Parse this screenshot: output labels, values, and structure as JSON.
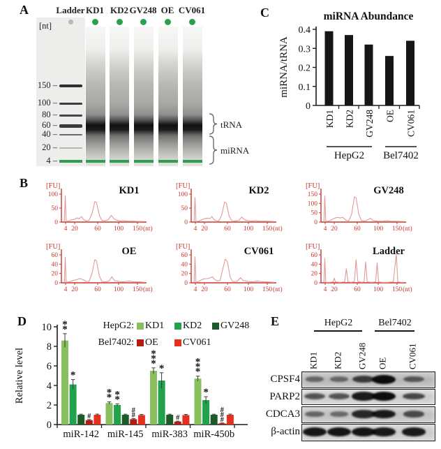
{
  "colors": {
    "trace": "#e29a98",
    "axis_red": "#c5372f",
    "bar_black": "#161616",
    "dot_green": "#2aa24d",
    "dot_gray": "#b8b8b6",
    "gel_green_band": "#2f9e4e",
    "kd1_green": "#8abf60",
    "kd2_green": "#23a24d",
    "gv248_green": "#1c5b28",
    "oe_red": "#b21c12",
    "cv061_red": "#e6301f"
  },
  "panel_a": {
    "label": "A",
    "nt_unit": "[nt]",
    "lane_labels": [
      "Ladder",
      "KD1",
      "KD2",
      "GV248",
      "OE",
      "CV061"
    ],
    "markers": [
      "150",
      "100",
      "80",
      "60",
      "40",
      "20",
      "4"
    ],
    "annotations": {
      "trna": "tRNA",
      "mirna": "miRNA"
    }
  },
  "panel_b": {
    "label": "B",
    "subplot_indices": [
      0,
      1,
      2,
      3,
      4,
      5
    ]
  },
  "panel_c": {
    "label": "C",
    "chart_index": 6
  },
  "panel_d": {
    "label": "D",
    "chart_index": 7
  },
  "panel_e": {
    "label": "E",
    "groups": [
      {
        "name": "HepG2",
        "lanes": [
          "KD1",
          "KD2",
          "GV248"
        ]
      },
      {
        "name": "Bel7402",
        "lanes": [
          "OE",
          "CV061"
        ]
      }
    ],
    "lanes": [
      "KD1",
      "KD2",
      "GV248",
      "OE",
      "CV061"
    ],
    "proteins": [
      "CPSF4",
      "PARP2",
      "CDCA3",
      "β-actin"
    ],
    "band_intensities": [
      [
        0.3,
        0.3,
        0.65,
        1.0,
        0.45
      ],
      [
        0.5,
        0.5,
        0.9,
        1.0,
        0.6
      ],
      [
        0.35,
        0.3,
        0.8,
        0.9,
        0.55
      ],
      [
        0.93,
        0.95,
        0.95,
        0.92,
        0.9
      ]
    ]
  },
  "chart_data": [
    {
      "type": "line",
      "title": "KD1",
      "ylabel": "[FU]",
      "xlabel": "(nt)",
      "y_ticks": [
        0,
        50,
        100
      ],
      "x_ticks": [
        4,
        20,
        60,
        100,
        150
      ],
      "points": [
        [
          2,
          1
        ],
        [
          3.5,
          95
        ],
        [
          5,
          2
        ],
        [
          10,
          4
        ],
        [
          15,
          8
        ],
        [
          20,
          10
        ],
        [
          24,
          15
        ],
        [
          28,
          12
        ],
        [
          32,
          20
        ],
        [
          35,
          10
        ],
        [
          40,
          4
        ],
        [
          45,
          6
        ],
        [
          50,
          30
        ],
        [
          55,
          73
        ],
        [
          58,
          70
        ],
        [
          63,
          25
        ],
        [
          68,
          6
        ],
        [
          73,
          4
        ],
        [
          80,
          8
        ],
        [
          86,
          24
        ],
        [
          92,
          10
        ],
        [
          98,
          6
        ],
        [
          105,
          4
        ],
        [
          115,
          5
        ],
        [
          125,
          3
        ],
        [
          140,
          3
        ],
        [
          155,
          2
        ],
        [
          168,
          2
        ]
      ]
    },
    {
      "type": "line",
      "title": "KD2",
      "ylabel": "[FU]",
      "xlabel": "(nt)",
      "y_ticks": [
        0,
        50,
        100
      ],
      "x_ticks": [
        4,
        20,
        60,
        100,
        150
      ],
      "points": [
        [
          2,
          1
        ],
        [
          3.5,
          88
        ],
        [
          5,
          2
        ],
        [
          10,
          3
        ],
        [
          15,
          8
        ],
        [
          20,
          12
        ],
        [
          25,
          14
        ],
        [
          30,
          13
        ],
        [
          33,
          20
        ],
        [
          36,
          10
        ],
        [
          40,
          5
        ],
        [
          45,
          4
        ],
        [
          50,
          25
        ],
        [
          55,
          72
        ],
        [
          58,
          68
        ],
        [
          63,
          22
        ],
        [
          68,
          5
        ],
        [
          75,
          4
        ],
        [
          82,
          6
        ],
        [
          87,
          18
        ],
        [
          93,
          8
        ],
        [
          100,
          5
        ],
        [
          110,
          4
        ],
        [
          120,
          5
        ],
        [
          135,
          3
        ],
        [
          150,
          3
        ],
        [
          168,
          2
        ]
      ]
    },
    {
      "type": "line",
      "title": "GV248",
      "ylabel": "[FU]",
      "xlabel": "(nt)",
      "y_ticks": [
        0,
        50,
        100,
        150
      ],
      "x_ticks": [
        4,
        20,
        60,
        100,
        150
      ],
      "points": [
        [
          2,
          1
        ],
        [
          3.5,
          140
        ],
        [
          5,
          3
        ],
        [
          10,
          5
        ],
        [
          15,
          12
        ],
        [
          20,
          20
        ],
        [
          25,
          25
        ],
        [
          30,
          22
        ],
        [
          35,
          25
        ],
        [
          40,
          10
        ],
        [
          45,
          6
        ],
        [
          50,
          40
        ],
        [
          55,
          135
        ],
        [
          58,
          130
        ],
        [
          63,
          40
        ],
        [
          68,
          8
        ],
        [
          75,
          5
        ],
        [
          85,
          20
        ],
        [
          90,
          8
        ],
        [
          100,
          5
        ],
        [
          110,
          4
        ],
        [
          125,
          8
        ],
        [
          130,
          5
        ],
        [
          145,
          4
        ],
        [
          168,
          3
        ]
      ]
    },
    {
      "type": "line",
      "title": "OE",
      "ylabel": "[FU]",
      "xlabel": "(nt)",
      "y_ticks": [
        0,
        20,
        40,
        60
      ],
      "x_ticks": [
        4,
        20,
        60,
        100,
        150
      ],
      "points": [
        [
          2,
          0.5
        ],
        [
          3.5,
          55
        ],
        [
          5,
          1
        ],
        [
          10,
          2
        ],
        [
          15,
          4
        ],
        [
          20,
          6
        ],
        [
          25,
          7
        ],
        [
          28,
          9
        ],
        [
          32,
          8
        ],
        [
          36,
          6
        ],
        [
          40,
          3
        ],
        [
          45,
          3
        ],
        [
          50,
          20
        ],
        [
          55,
          50
        ],
        [
          58,
          47
        ],
        [
          63,
          15
        ],
        [
          68,
          3
        ],
        [
          75,
          2
        ],
        [
          82,
          4
        ],
        [
          87,
          13
        ],
        [
          92,
          5
        ],
        [
          100,
          3
        ],
        [
          110,
          2
        ],
        [
          120,
          3
        ],
        [
          128,
          4
        ],
        [
          140,
          2
        ],
        [
          155,
          2
        ],
        [
          168,
          1
        ]
      ]
    },
    {
      "type": "line",
      "title": "CV061",
      "ylabel": "[FU]",
      "xlabel": "(nt)",
      "y_ticks": [
        0,
        20,
        40,
        60
      ],
      "x_ticks": [
        4,
        20,
        60,
        100,
        150
      ],
      "points": [
        [
          2,
          0.5
        ],
        [
          3.5,
          56
        ],
        [
          5,
          1
        ],
        [
          8,
          2
        ],
        [
          14,
          6
        ],
        [
          18,
          8
        ],
        [
          22,
          9
        ],
        [
          26,
          9
        ],
        [
          30,
          11
        ],
        [
          34,
          13
        ],
        [
          37,
          8
        ],
        [
          42,
          4
        ],
        [
          47,
          5
        ],
        [
          52,
          30
        ],
        [
          56,
          51
        ],
        [
          60,
          45
        ],
        [
          65,
          12
        ],
        [
          70,
          3
        ],
        [
          78,
          3
        ],
        [
          85,
          11
        ],
        [
          90,
          5
        ],
        [
          100,
          3
        ],
        [
          112,
          2
        ],
        [
          125,
          4
        ],
        [
          130,
          3
        ],
        [
          145,
          2
        ],
        [
          168,
          1
        ]
      ]
    },
    {
      "type": "line",
      "title": "Ladder",
      "ylabel": "[FU]",
      "xlabel": "(nt)",
      "y_ticks": [
        0,
        20,
        40,
        60
      ],
      "x_ticks": [
        4,
        20,
        60,
        100,
        150
      ],
      "points": [
        [
          2,
          0.5
        ],
        [
          3.5,
          52
        ],
        [
          5,
          1
        ],
        [
          12,
          1
        ],
        [
          18,
          2
        ],
        [
          20,
          10
        ],
        [
          22,
          2
        ],
        [
          30,
          1
        ],
        [
          38,
          2
        ],
        [
          41,
          30
        ],
        [
          44,
          2
        ],
        [
          50,
          1
        ],
        [
          55,
          3
        ],
        [
          58,
          50
        ],
        [
          61,
          3
        ],
        [
          68,
          1
        ],
        [
          73,
          2
        ],
        [
          76,
          45
        ],
        [
          79,
          2
        ],
        [
          88,
          1
        ],
        [
          95,
          2
        ],
        [
          98,
          43
        ],
        [
          101,
          2
        ],
        [
          110,
          1
        ],
        [
          125,
          1
        ],
        [
          140,
          2
        ],
        [
          148,
          62
        ],
        [
          152,
          2
        ],
        [
          160,
          1
        ],
        [
          168,
          1
        ]
      ]
    },
    {
      "type": "bar",
      "title": "miRNA Abundance",
      "ylabel": "miRNA/tRNA",
      "y_ticks": [
        0,
        0.1,
        0.2,
        0.3,
        0.4
      ],
      "ylim": [
        0,
        0.4
      ],
      "categories": [
        "KD1",
        "KD2",
        "GV248",
        "OE",
        "CV061"
      ],
      "values": [
        0.39,
        0.37,
        0.32,
        0.26,
        0.34
      ],
      "groups": [
        {
          "name": "HepG2",
          "span": [
            0,
            2
          ]
        },
        {
          "name": "Bel7402",
          "span": [
            3,
            4
          ]
        }
      ]
    },
    {
      "type": "bar",
      "ylabel": "Relative level",
      "y_ticks": [
        0,
        2,
        4,
        6,
        8,
        10
      ],
      "ylim": [
        0,
        10
      ],
      "categories": [
        "miR-142",
        "miR-145",
        "miR-383",
        "miR-450b"
      ],
      "legend": [
        {
          "group": "HepG2:",
          "series": [
            "KD1",
            "KD2",
            "GV248"
          ]
        },
        {
          "group": "Bel7402:",
          "series": [
            "OE",
            "CV061"
          ]
        }
      ],
      "series": [
        {
          "name": "KD1",
          "color": "#8abf60",
          "values": [
            8.6,
            2.2,
            5.5,
            4.7
          ],
          "errors": [
            0.7,
            0.12,
            0.3,
            0.25
          ],
          "sig": [
            "**",
            "**",
            "***",
            "***"
          ]
        },
        {
          "name": "KD2",
          "color": "#23a24d",
          "values": [
            4.1,
            2.0,
            4.5,
            2.5
          ],
          "errors": [
            0.5,
            0.12,
            0.8,
            0.35
          ],
          "sig": [
            "*",
            "**",
            "*",
            "*"
          ]
        },
        {
          "name": "GV248",
          "color": "#1c5b28",
          "values": [
            1.0,
            1.0,
            1.0,
            1.0
          ],
          "errors": [
            0.06,
            0.06,
            0.06,
            0.06
          ],
          "sig": [
            "",
            "",
            "",
            ""
          ]
        },
        {
          "name": "OE",
          "color": "#b21c12",
          "values": [
            0.45,
            0.55,
            0.3,
            0.12
          ],
          "errors": [
            0.06,
            0.06,
            0.05,
            0.04
          ],
          "sig": [
            "#",
            "##",
            "#",
            "###"
          ]
        },
        {
          "name": "CV061",
          "color": "#e6301f",
          "values": [
            1.0,
            0.97,
            0.97,
            1.0
          ],
          "errors": [
            0.07,
            0.07,
            0.07,
            0.07
          ],
          "sig": [
            "",
            "",
            "",
            ""
          ]
        }
      ]
    }
  ]
}
